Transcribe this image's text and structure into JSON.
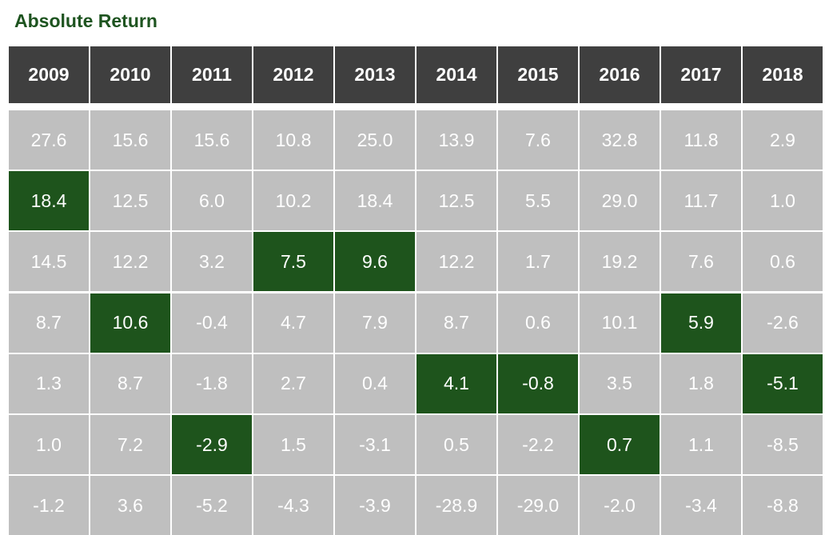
{
  "colors": {
    "title": "#1e5420",
    "header_bg": "#3f3f3f",
    "header_text": "#ffffff",
    "cell_bg": "#bfbfbf",
    "highlight_bg": "#1e541c",
    "cell_text": "#ffffff"
  },
  "chart_data": {
    "type": "table",
    "title": "Absolute Return",
    "columns": [
      "2009",
      "2010",
      "2011",
      "2012",
      "2013",
      "2014",
      "2015",
      "2016",
      "2017",
      "2018"
    ],
    "rows": [
      [
        "27.6",
        "15.6",
        "15.6",
        "10.8",
        "25.0",
        "13.9",
        "7.6",
        "32.8",
        "11.8",
        "2.9"
      ],
      [
        "18.4",
        "12.5",
        "6.0",
        "10.2",
        "18.4",
        "12.5",
        "5.5",
        "29.0",
        "11.7",
        "1.0"
      ],
      [
        "14.5",
        "12.2",
        "3.2",
        "7.5",
        "9.6",
        "12.2",
        "1.7",
        "19.2",
        "7.6",
        "0.6"
      ],
      [
        "8.7",
        "10.6",
        "-0.4",
        "4.7",
        "7.9",
        "8.7",
        "0.6",
        "10.1",
        "5.9",
        "-2.6"
      ],
      [
        "1.3",
        "8.7",
        "-1.8",
        "2.7",
        "0.4",
        "4.1",
        "-0.8",
        "3.5",
        "1.8",
        "-5.1"
      ],
      [
        "1.0",
        "7.2",
        "-2.9",
        "1.5",
        "-3.1",
        "0.5",
        "-2.2",
        "0.7",
        "1.1",
        "-8.5"
      ],
      [
        "-1.2",
        "3.6",
        "-5.2",
        "-4.3",
        "-3.9",
        "-28.9",
        "-29.0",
        "-2.0",
        "-3.4",
        "-8.8"
      ]
    ],
    "highlighted_row_by_column": [
      1,
      3,
      5,
      2,
      2,
      4,
      4,
      5,
      3,
      4
    ]
  }
}
